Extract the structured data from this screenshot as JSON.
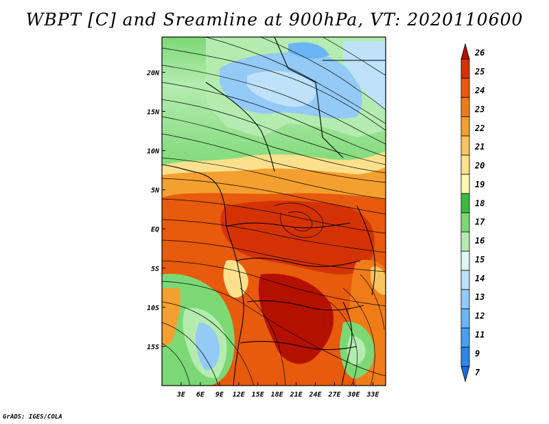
{
  "title": "WBPT [C] and Sreamline at 900hPa, VT: 2020110600",
  "credit": "GrADS: IGES/COLA",
  "map": {
    "lon_range": [
      0,
      35
    ],
    "lat_range": [
      -20,
      24.5
    ],
    "x_ticks": [
      "3E",
      "6E",
      "9E",
      "12E",
      "15E",
      "18E",
      "21E",
      "24E",
      "27E",
      "30E",
      "33E"
    ],
    "y_ticks": [
      "20N",
      "15N",
      "10N",
      "5N",
      "EQ",
      "5S",
      "10S",
      "15S"
    ]
  },
  "colorbar": {
    "labels": [
      "7",
      "9",
      "11",
      "12",
      "13",
      "14",
      "15",
      "16",
      "17",
      "18",
      "19",
      "20",
      "21",
      "22",
      "23",
      "24",
      "25",
      "26"
    ],
    "colors": [
      "#1e6cdc",
      "#2e86e6",
      "#4aa0f0",
      "#6ab6f4",
      "#94caf6",
      "#bee2fa",
      "#e0f6f4",
      "#b4ecb0",
      "#7cd874",
      "#40b840",
      "#fff6b0",
      "#fce08c",
      "#f8c460",
      "#f4a030",
      "#f07c18",
      "#e85a0c",
      "#d43204",
      "#b41000"
    ]
  }
}
